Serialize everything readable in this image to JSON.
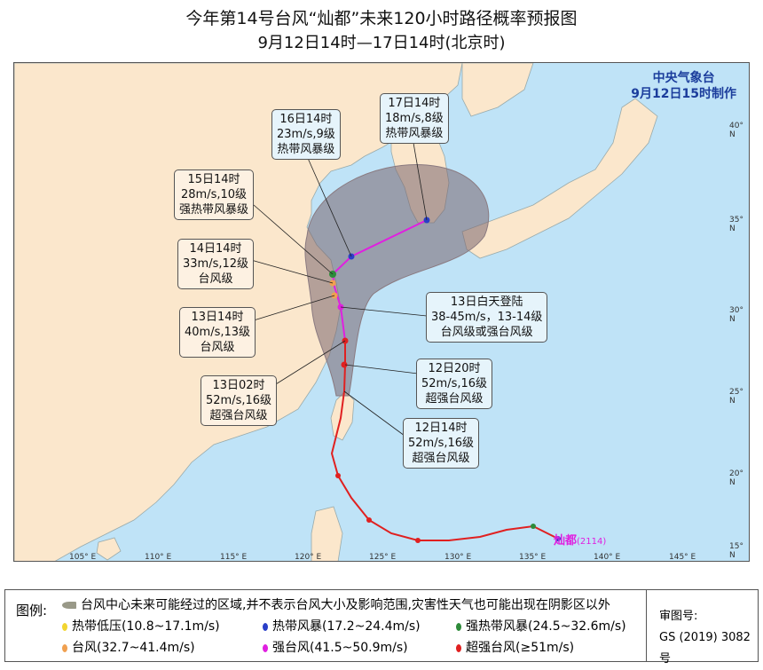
{
  "title": "今年第14号台风“灿都”未来120小时路径概率预报图",
  "subtitle": "9月12日14时—17日14时(北京时)",
  "agency": {
    "name": "中央气象台",
    "made": "9月12日15时制作"
  },
  "storm_label": {
    "name": "灿都",
    "id": "(2114)"
  },
  "axes": {
    "lon": [
      "105° E",
      "110° E",
      "115° E",
      "120° E",
      "125° E",
      "130° E",
      "135° E",
      "140° E",
      "145° E"
    ],
    "lat": [
      "40° N",
      "35° N",
      "30° N",
      "25° N",
      "20° N",
      "15° N"
    ]
  },
  "callouts": [
    {
      "time": "17日14时",
      "wind": "18m/s,8级",
      "level": "热带风暴级"
    },
    {
      "time": "16日14时",
      "wind": "23m/s,9级",
      "level": "热带风暴级"
    },
    {
      "time": "15日14时",
      "wind": "28m/s,10级",
      "level": "强热带风暴级"
    },
    {
      "time": "14日14时",
      "wind": "33m/s,12级",
      "level": "台风级"
    },
    {
      "time": "13日14时",
      "wind": "40m/s,13级",
      "level": "台风级"
    },
    {
      "time": "13日02时",
      "wind": "52m/s,16级",
      "level": "超强台风级"
    },
    {
      "time": "13日白天登陆",
      "wind": "38-45m/s，13-14级",
      "level": "台风级或强台风级"
    },
    {
      "time": "12日20时",
      "wind": "52m/s,16级",
      "level": "超强台风级"
    },
    {
      "time": "12日14时",
      "wind": "52m/s,16级",
      "level": "超强台风级"
    }
  ],
  "legend": {
    "heading": "图例:",
    "area": "台风中心未来可能经过的区域,并不表示台风大小及影响范围,灾害性天气也可能出现在阴影区以外",
    "items": [
      {
        "label": "热带低压(10.8~17.1m/s)",
        "color": "#f2d530"
      },
      {
        "label": "热带风暴(17.2~24.4m/s)",
        "color": "#2a3fc8"
      },
      {
        "label": "强热带风暴(24.5~32.6m/s)",
        "color": "#2e8b3a"
      },
      {
        "label": "台风(32.7~41.4m/s)",
        "color": "#f0a050"
      },
      {
        "label": "强台风(41.5~50.9m/s)",
        "color": "#e020e0"
      },
      {
        "label": "超强台风(≥51m/s)",
        "color": "#e02020"
      }
    ],
    "approval_label": "审图号:",
    "approval_no": "GS (2019) 3082号"
  }
}
